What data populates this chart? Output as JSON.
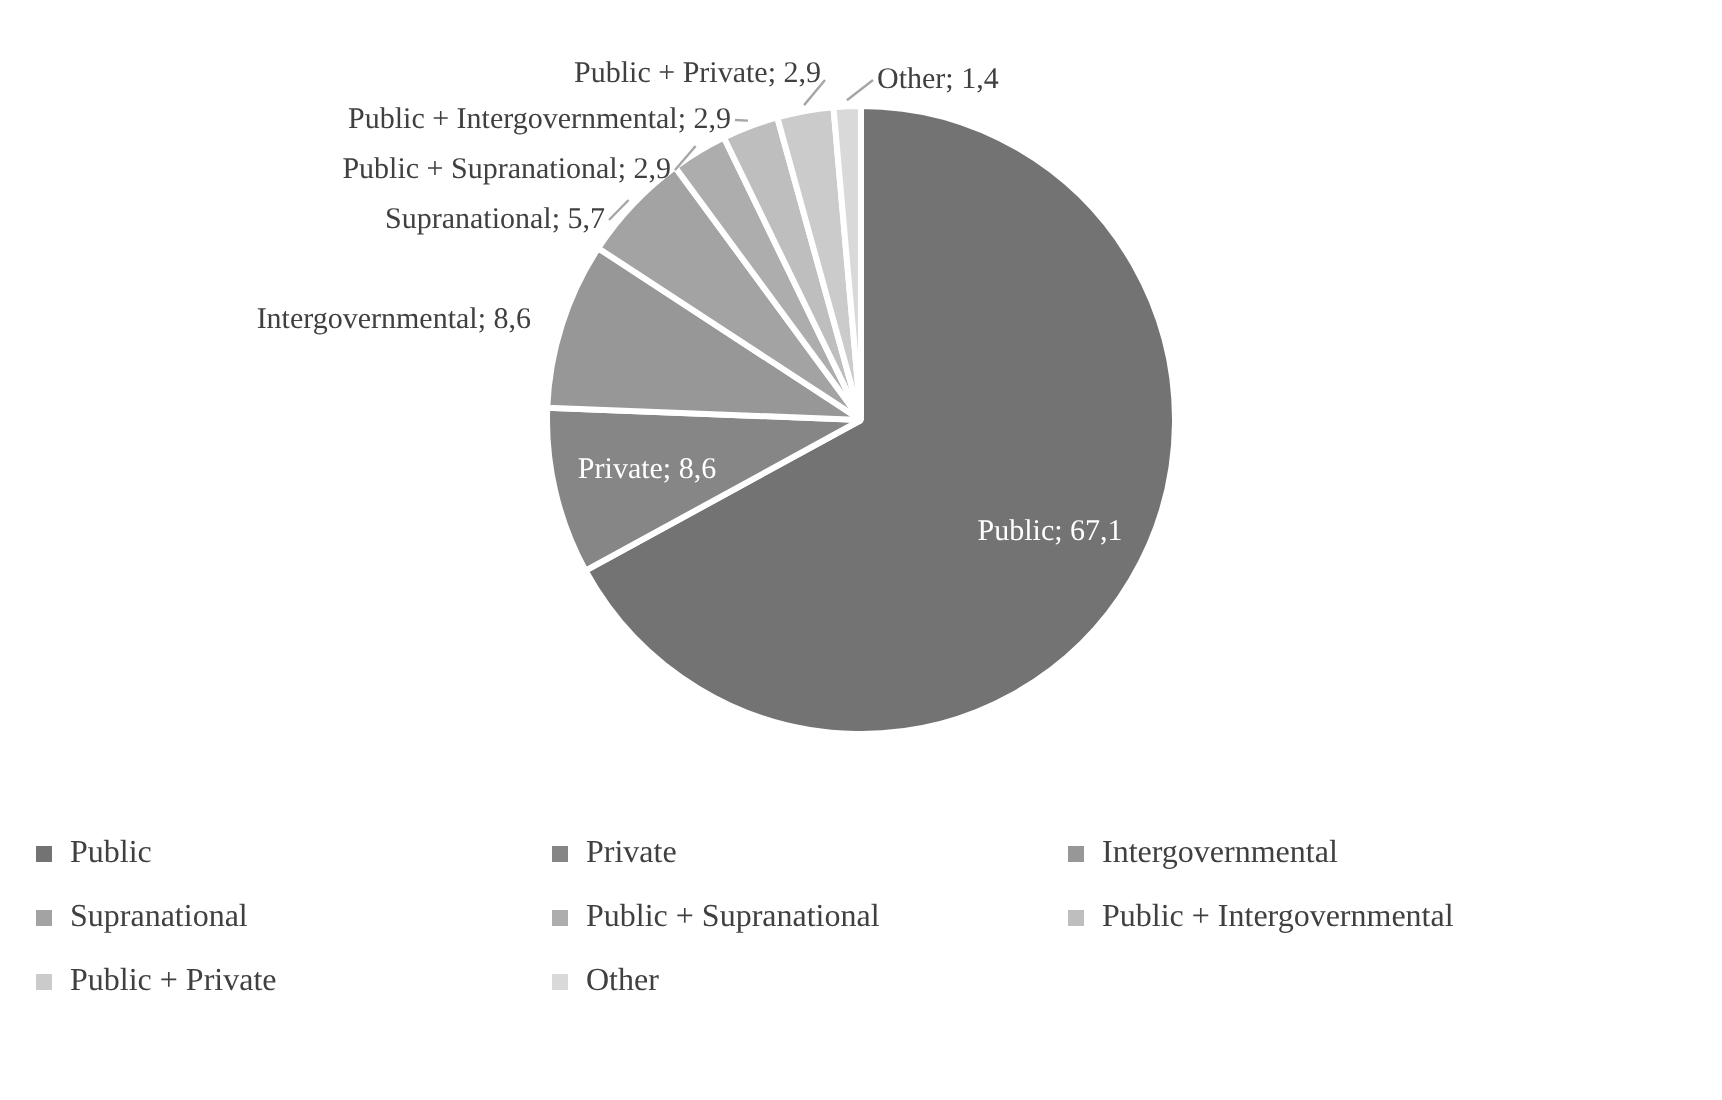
{
  "chart_data": {
    "type": "pie",
    "categories": [
      "Public",
      "Private",
      "Intergovernmental",
      "Supranational",
      "Public + Supranational",
      "Public + Intergovernmental",
      "Public + Private",
      "Other"
    ],
    "values": [
      67.1,
      8.6,
      8.6,
      5.7,
      2.9,
      2.9,
      2.9,
      1.4
    ],
    "colors": [
      "#737373",
      "#868686",
      "#979797",
      "#a3a3a3",
      "#adadad",
      "#bebebe",
      "#cbcbcb",
      "#d9d9d9"
    ],
    "value_labels": [
      "Public; 67,1",
      "Private; 8,6",
      "Intergovernmental; 8,6",
      "Supranational; 5,7",
      "Public + Supranational; 2,9",
      "Public + Intergovernmental; 2,9",
      "Public + Private; 2,9",
      "Other; 1,4"
    ],
    "legend": "bottom"
  }
}
